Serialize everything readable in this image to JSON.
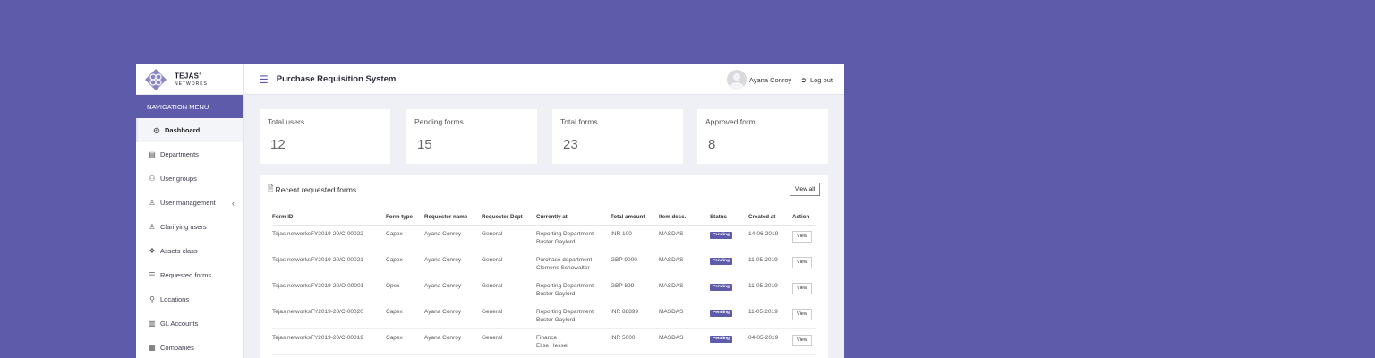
{
  "colors": {
    "accent": "#5f5bab",
    "background": "#5f5bab"
  },
  "brand": {
    "name": "TEJAS",
    "sub": "NETWORKS",
    "reg": "®"
  },
  "nav": {
    "header": "NAVIGATION MENU",
    "items": [
      {
        "label": "Dashboard",
        "icon": "dashboard-icon",
        "glyph": "◴"
      },
      {
        "label": "Departments",
        "icon": "briefcase-icon",
        "glyph": "▤"
      },
      {
        "label": "User groups",
        "icon": "users-icon",
        "glyph": "⚇"
      },
      {
        "label": "User management",
        "icon": "user-icon",
        "glyph": "♙"
      },
      {
        "label": "Clarifying users",
        "icon": "user-icon",
        "glyph": "♙"
      },
      {
        "label": "Assets class",
        "icon": "shapes-icon",
        "glyph": "❖"
      },
      {
        "label": "Requested forms",
        "icon": "document-icon",
        "glyph": "☰"
      },
      {
        "label": "Locations",
        "icon": "location-pin-icon",
        "glyph": "♲"
      },
      {
        "label": "GL Accounts",
        "icon": "ledger-icon",
        "glyph": "▥"
      },
      {
        "label": "Companies",
        "icon": "building-icon",
        "glyph": "▦"
      }
    ]
  },
  "header": {
    "title": "Purchase Requisition System",
    "user": "Ayana Conroy",
    "logout": "Log out"
  },
  "stats": [
    {
      "label": "Total users",
      "value": "12"
    },
    {
      "label": "Pending forms",
      "value": "15"
    },
    {
      "label": "Total forms",
      "value": "23"
    },
    {
      "label": "Approved form",
      "value": "8"
    }
  ],
  "recent": {
    "title": "Recent requested forms",
    "view_all": "View all",
    "columns": [
      "Form ID",
      "Form type",
      "Requester name",
      "Requester Dept",
      "Currently at",
      "Total amount",
      "Item desc.",
      "Status",
      "Created at",
      "Action"
    ],
    "rows": [
      {
        "id": "Tejas networksFY2019-20/C-00022",
        "type": "Capex",
        "name": "Ayana Conroy",
        "dept": "General",
        "at1": "Reporting Department",
        "at2": "Buster Gaylord",
        "amount": "INR 100",
        "desc": "MASDAS",
        "status": "Pending",
        "created": "14-06-2019",
        "action": "View"
      },
      {
        "id": "Tejas networksFY2019-20/C-00021",
        "type": "Capex",
        "name": "Ayana Conroy",
        "dept": "General",
        "at1": "Purchase department",
        "at2": "Clemens Schowalter",
        "amount": "GBP 9000",
        "desc": "MASDAS",
        "status": "Pending",
        "created": "11-05-2019",
        "action": "View"
      },
      {
        "id": "Tejas networksFY2019-20/O-00001",
        "type": "Opex",
        "name": "Ayana Conroy",
        "dept": "General",
        "at1": "Reporting Department",
        "at2": "Buster Gaylord",
        "amount": "GBP 899",
        "desc": "MASDAS",
        "status": "Pending",
        "created": "11-05-2019",
        "action": "View"
      },
      {
        "id": "Tejas networksFY2019-20/C-00020",
        "type": "Capex",
        "name": "Ayana Conroy",
        "dept": "General",
        "at1": "Reporting Department",
        "at2": "Buster Gaylord",
        "amount": "INR 88899",
        "desc": "MASDAS",
        "status": "Pending",
        "created": "11-05-2019",
        "action": "View"
      },
      {
        "id": "Tejas networksFY2019-20/C-00019",
        "type": "Capex",
        "name": "Ayana Conroy",
        "dept": "General",
        "at1": "Finance",
        "at2": "Elise Hessel",
        "amount": "INR 5000",
        "desc": "MASDAS",
        "status": "Pending",
        "created": "04-05-2019",
        "action": "View"
      }
    ]
  }
}
